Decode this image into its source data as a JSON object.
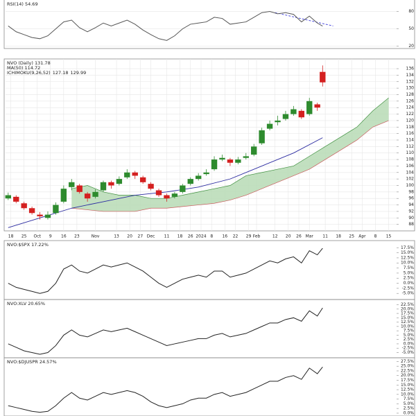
{
  "chart_data": [
    {
      "type": "line",
      "title": "RSI(14) 54.69",
      "color": "#555555",
      "x": [
        0,
        3,
        6,
        9,
        12,
        15,
        18,
        21,
        24,
        27,
        30,
        33,
        36,
        39,
        42,
        45,
        48,
        51,
        54,
        57,
        60,
        63,
        66,
        69,
        72,
        75,
        78,
        81,
        84,
        87,
        90,
        93,
        96,
        99,
        102,
        105,
        108,
        111,
        114,
        117,
        119
      ],
      "values": [
        55,
        45,
        40,
        35,
        33,
        38,
        50,
        62,
        65,
        52,
        45,
        52,
        60,
        55,
        60,
        65,
        58,
        48,
        40,
        33,
        30,
        38,
        50,
        58,
        60,
        62,
        70,
        68,
        58,
        60,
        62,
        70,
        78,
        80,
        76,
        78,
        75,
        62,
        72,
        60,
        54.69
      ],
      "trendline": {
        "x": [
          101,
          123
        ],
        "values": [
          78,
          55
        ],
        "color": "#3a3ad8"
      },
      "xlim": [
        -1,
        147
      ],
      "ylim": [
        16,
        101
      ],
      "yticks": [
        20,
        50,
        80
      ],
      "grid": true
    },
    {
      "type": "candlestick",
      "title": "NVO (Daily) 131.78",
      "up_color": "#2e8b2e",
      "down_color": "#d42020",
      "x": [
        0,
        3,
        6,
        9,
        12,
        15,
        18,
        21,
        24,
        27,
        30,
        33,
        36,
        39,
        42,
        45,
        48,
        51,
        54,
        57,
        60,
        63,
        66,
        69,
        72,
        75,
        78,
        81,
        84,
        87,
        90,
        93,
        96,
        99,
        102,
        105,
        108,
        111,
        114,
        117,
        119
      ],
      "open": [
        96,
        96.5,
        94.5,
        93,
        91,
        90,
        91.5,
        95,
        99.5,
        100,
        97.5,
        96.5,
        98.5,
        101,
        100.5,
        102.5,
        104,
        102.5,
        100.5,
        98.5,
        97,
        96.5,
        98,
        100.5,
        102,
        103.5,
        105,
        108,
        108,
        107,
        108.5,
        109.5,
        113,
        117.5,
        119.5,
        120.5,
        122,
        123,
        122,
        125,
        135
      ],
      "high": [
        97.8,
        97,
        95,
        93.5,
        91.8,
        92,
        94.8,
        100,
        102,
        100.5,
        98,
        98.8,
        101.5,
        101.5,
        102.8,
        105,
        104.5,
        103,
        101,
        99,
        97.5,
        98,
        100.5,
        102.5,
        103.8,
        105,
        109,
        109.5,
        108.5,
        108.8,
        110,
        112.8,
        117.8,
        120,
        121.5,
        123,
        124.5,
        123.5,
        127,
        125.5,
        137
      ],
      "low": [
        95.5,
        94.5,
        92.5,
        91,
        89.5,
        89.5,
        91,
        94.5,
        98.5,
        97.5,
        95,
        96,
        98,
        99,
        100,
        102,
        102,
        100.5,
        98.5,
        96.5,
        95,
        96,
        97.5,
        100,
        101.5,
        103,
        104.5,
        107.5,
        106,
        106.5,
        108,
        109,
        112.5,
        117,
        118.5,
        120,
        121.5,
        120.5,
        121.5,
        123,
        130.5
      ],
      "close": [
        97,
        95,
        93,
        91.5,
        90.5,
        91,
        94,
        99,
        101,
        98,
        96,
        98,
        101,
        100,
        102,
        104,
        103,
        101,
        99,
        97,
        96,
        97.5,
        100,
        102,
        103,
        104,
        108,
        108.5,
        107,
        108,
        109,
        112,
        117,
        119,
        120,
        122,
        123.5,
        121,
        126,
        124,
        131.78
      ],
      "ma": {
        "name": "MA(50) 114.72",
        "color": "#2a2aa0",
        "x": [
          0,
          12,
          24,
          36,
          48,
          60,
          72,
          84,
          96,
          108,
          119
        ],
        "values": [
          87,
          90,
          93,
          95,
          97,
          98,
          99.5,
          102,
          106,
          110,
          114.72
        ]
      },
      "cloud": {
        "name": "ICHIMOKU(9,26,52)",
        "last": [
          127.18,
          129.99
        ],
        "color": "#b7dbb5",
        "span_a_color": "#3f8f3f",
        "span_b_color": "#c85a5a",
        "x": [
          24,
          30,
          36,
          42,
          48,
          54,
          60,
          66,
          72,
          78,
          84,
          90,
          96,
          102,
          108,
          114,
          120,
          126,
          132,
          138,
          144
        ],
        "span_a": [
          99,
          100,
          98,
          97,
          97,
          96,
          96,
          97,
          98,
          99,
          100,
          103,
          104,
          105,
          106,
          109,
          112,
          115,
          118,
          123,
          127
        ],
        "span_b": [
          93,
          92.5,
          92,
          92,
          92,
          93,
          93,
          93.5,
          94,
          94.5,
          95.5,
          97,
          99,
          101,
          103,
          105,
          108,
          111,
          114,
          118,
          120
        ]
      },
      "xlim": [
        -1,
        147
      ],
      "ylim": [
        86,
        139
      ],
      "yticks": [
        88,
        90,
        92,
        94,
        96,
        98,
        100,
        102,
        104,
        106,
        108,
        110,
        112,
        114,
        116,
        118,
        120,
        122,
        124,
        126,
        128,
        130,
        132,
        134,
        136
      ],
      "xticks": [
        {
          "value": 1,
          "label": "18"
        },
        {
          "value": 6,
          "label": "25"
        },
        {
          "value": 11,
          "label": "Oct"
        },
        {
          "value": 16,
          "label": "9"
        },
        {
          "value": 21,
          "label": "16"
        },
        {
          "value": 26,
          "label": "23"
        },
        {
          "value": 33,
          "label": "Nov"
        },
        {
          "value": 41,
          "label": "13"
        },
        {
          "value": 46,
          "label": "20"
        },
        {
          "value": 50,
          "label": "27"
        },
        {
          "value": 54,
          "label": "Dec"
        },
        {
          "value": 60,
          "label": "11"
        },
        {
          "value": 65,
          "label": "18"
        },
        {
          "value": 69,
          "label": "26"
        },
        {
          "value": 73,
          "label": "2024"
        },
        {
          "value": 77,
          "label": "8"
        },
        {
          "value": 82,
          "label": "16"
        },
        {
          "value": 86,
          "label": "22"
        },
        {
          "value": 91,
          "label": "29"
        },
        {
          "value": 94,
          "label": "Feb"
        },
        {
          "value": 101,
          "label": "12"
        },
        {
          "value": 106,
          "label": "20"
        },
        {
          "value": 110,
          "label": "26"
        },
        {
          "value": 114,
          "label": "Mar"
        },
        {
          "value": 120,
          "label": "11"
        },
        {
          "value": 125,
          "label": "18"
        },
        {
          "value": 130,
          "label": "25"
        },
        {
          "value": 134,
          "label": "Apr"
        },
        {
          "value": 139,
          "label": "8"
        },
        {
          "value": 144,
          "label": "15"
        }
      ],
      "grid": true
    },
    {
      "type": "line",
      "title": "NVO:$SPX 17.22%",
      "color": "#222222",
      "x": [
        0,
        3,
        6,
        9,
        12,
        15,
        18,
        21,
        24,
        27,
        30,
        33,
        36,
        39,
        42,
        45,
        48,
        51,
        54,
        57,
        60,
        63,
        66,
        69,
        72,
        75,
        78,
        81,
        84,
        87,
        90,
        93,
        96,
        99,
        102,
        105,
        108,
        111,
        114,
        117,
        119
      ],
      "values": [
        0,
        -2,
        -3,
        -4,
        -5,
        -4,
        0,
        7,
        9,
        6,
        5,
        7,
        9,
        8,
        9,
        10,
        8,
        6,
        3,
        0,
        -2,
        0,
        2,
        3,
        4,
        3,
        6,
        6,
        3,
        4,
        5,
        7,
        9,
        11,
        10,
        12,
        13,
        10,
        16,
        14,
        17.22
      ],
      "xlim": [
        -1,
        147
      ],
      "ylim": [
        -8,
        21
      ],
      "yticks": [
        {
          "value": -5,
          "label": "-5.0%"
        },
        {
          "value": -2.5,
          "label": "-2.5%"
        },
        {
          "value": 0,
          "label": "0.0%"
        },
        {
          "value": 2.5,
          "label": "2.5%"
        },
        {
          "value": 5,
          "label": "5.0%"
        },
        {
          "value": 7.5,
          "label": "7.5%"
        },
        {
          "value": 10,
          "label": "10.0%"
        },
        {
          "value": 12.5,
          "label": "12.5%"
        },
        {
          "value": 15,
          "label": "15.0%"
        },
        {
          "value": 17.5,
          "label": "17.5%"
        }
      ],
      "grid": false
    },
    {
      "type": "line",
      "title": "NVO:XLV 20.65%",
      "color": "#222222",
      "x": [
        0,
        3,
        6,
        9,
        12,
        15,
        18,
        21,
        24,
        27,
        30,
        33,
        36,
        39,
        42,
        45,
        48,
        51,
        54,
        57,
        60,
        63,
        66,
        69,
        72,
        75,
        78,
        81,
        84,
        87,
        90,
        93,
        96,
        99,
        102,
        105,
        108,
        111,
        114,
        117,
        119
      ],
      "values": [
        0,
        -2,
        -4,
        -5,
        -6,
        -5,
        -1,
        5,
        8,
        5,
        4,
        6,
        8,
        7,
        8,
        9,
        7,
        5,
        3,
        1,
        -1,
        0,
        1,
        2,
        3,
        3,
        5,
        6,
        4,
        5,
        6,
        8,
        10,
        12,
        12,
        14,
        15,
        13,
        19,
        16,
        20.65
      ],
      "xlim": [
        -1,
        147
      ],
      "ylim": [
        -8,
        25.5
      ],
      "yticks": [
        {
          "value": -5,
          "label": "-5.0%"
        },
        {
          "value": -2.5,
          "label": "-2.5%"
        },
        {
          "value": 0,
          "label": "0.0%"
        },
        {
          "value": 2.5,
          "label": "2.5%"
        },
        {
          "value": 5,
          "label": "5.0%"
        },
        {
          "value": 7.5,
          "label": "7.5%"
        },
        {
          "value": 10,
          "label": "10.0%"
        },
        {
          "value": 12.5,
          "label": "12.5%"
        },
        {
          "value": 15,
          "label": "15.0%"
        },
        {
          "value": 17.5,
          "label": "17.5%"
        },
        {
          "value": 20,
          "label": "20.0%"
        },
        {
          "value": 22.5,
          "label": "22.5%"
        }
      ],
      "grid": false
    },
    {
      "type": "line",
      "title": "NVO:$DJUSPR 24.57%",
      "color": "#222222",
      "x": [
        0,
        3,
        6,
        9,
        12,
        15,
        18,
        21,
        24,
        27,
        30,
        33,
        36,
        39,
        42,
        45,
        48,
        51,
        54,
        57,
        60,
        63,
        66,
        69,
        72,
        75,
        78,
        81,
        84,
        87,
        90,
        93,
        96,
        99,
        102,
        105,
        108,
        111,
        114,
        117,
        119
      ],
      "values": [
        4,
        3,
        2,
        1,
        0.5,
        1,
        4,
        8,
        11,
        8,
        7,
        9,
        11,
        10,
        11,
        12,
        11,
        9,
        6,
        4,
        3,
        4,
        5,
        7,
        8,
        8,
        10,
        11,
        9,
        10,
        11,
        13,
        15,
        17,
        17,
        19,
        20,
        18,
        24,
        21,
        24.57
      ],
      "xlim": [
        -1,
        147
      ],
      "ylim": [
        -1.5,
        29.5
      ],
      "yticks": [
        {
          "value": 0,
          "label": "0.0%"
        },
        {
          "value": 2.5,
          "label": "2.5%"
        },
        {
          "value": 5,
          "label": "5.0%"
        },
        {
          "value": 7.5,
          "label": "7.5%"
        },
        {
          "value": 10,
          "label": "10.0%"
        },
        {
          "value": 12.5,
          "label": "12.5%"
        },
        {
          "value": 15,
          "label": "15.0%"
        },
        {
          "value": 17.5,
          "label": "17.5%"
        },
        {
          "value": 20,
          "label": "20.0%"
        },
        {
          "value": 22.5,
          "label": "22.5%"
        },
        {
          "value": 25,
          "label": "25.0%"
        },
        {
          "value": 27.5,
          "label": "27.5%"
        }
      ],
      "grid": false
    }
  ]
}
